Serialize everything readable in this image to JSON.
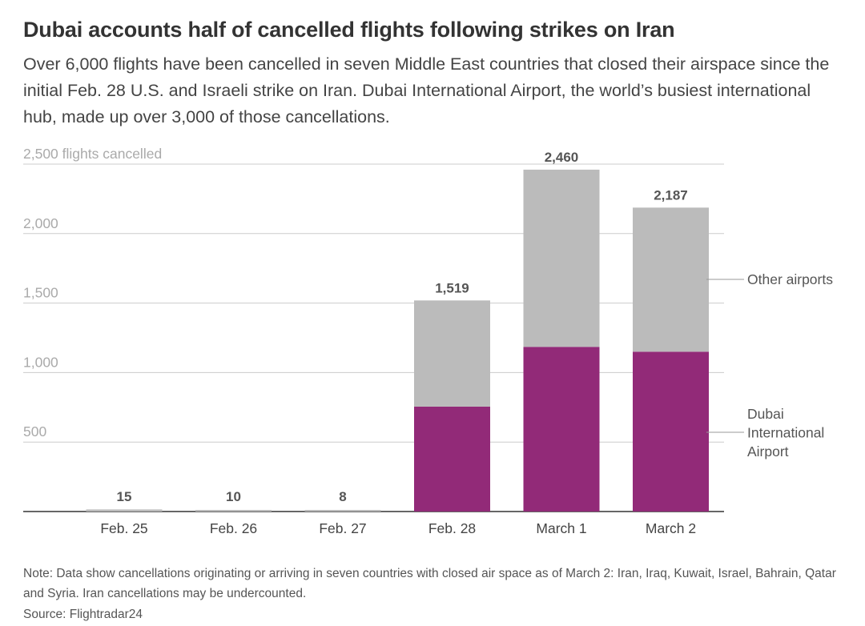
{
  "header": {
    "title": "Dubai accounts half of cancelled flights following strikes on Iran",
    "subtitle": "Over 6,000 flights have been cancelled in seven Middle East countries that closed their airspace since the initial Feb. 28 U.S. and Israeli strike on Iran. Dubai International Airport, the world’s busiest international hub, made up over 3,000 of those cancellations."
  },
  "chart_data": {
    "type": "bar",
    "stacked": true,
    "categories": [
      "Feb. 25",
      "Feb. 26",
      "Feb. 27",
      "Feb. 28",
      "March 1",
      "March 2"
    ],
    "series": [
      {
        "name": "Dubai International Airport",
        "values": [
          0,
          0,
          0,
          755,
          1185,
          1150
        ],
        "color": "#922a78"
      },
      {
        "name": "Other airports",
        "values": [
          15,
          10,
          8,
          764,
          1275,
          1037
        ],
        "color": "#bbbbbb"
      }
    ],
    "totals": [
      "15",
      "10",
      "8",
      "1,519",
      "2,460",
      "2,187"
    ],
    "totals_values": [
      15,
      10,
      8,
      1519,
      2460,
      2187
    ],
    "yticks": [
      {
        "value": 500,
        "label": "500"
      },
      {
        "value": 1000,
        "label": "1,000"
      },
      {
        "value": 1500,
        "label": "1,500"
      },
      {
        "value": 2000,
        "label": "2,000"
      },
      {
        "value": 2500,
        "label": "2,500 flights cancelled"
      }
    ],
    "ylim": [
      0,
      2500
    ],
    "grid": true,
    "legend": {
      "other_label": "Other airports",
      "dubai_lines": [
        "Dubai",
        "International",
        "Airport"
      ]
    }
  },
  "footer": {
    "note": "Note: Data show cancellations originating or arriving in seven countries with closed air space as of March 2: Iran, Iraq, Kuwait, Israel, Bahrain, Qatar and Syria. Iran cancellations may be undercounted.",
    "source": "Source: Flightradar24"
  }
}
